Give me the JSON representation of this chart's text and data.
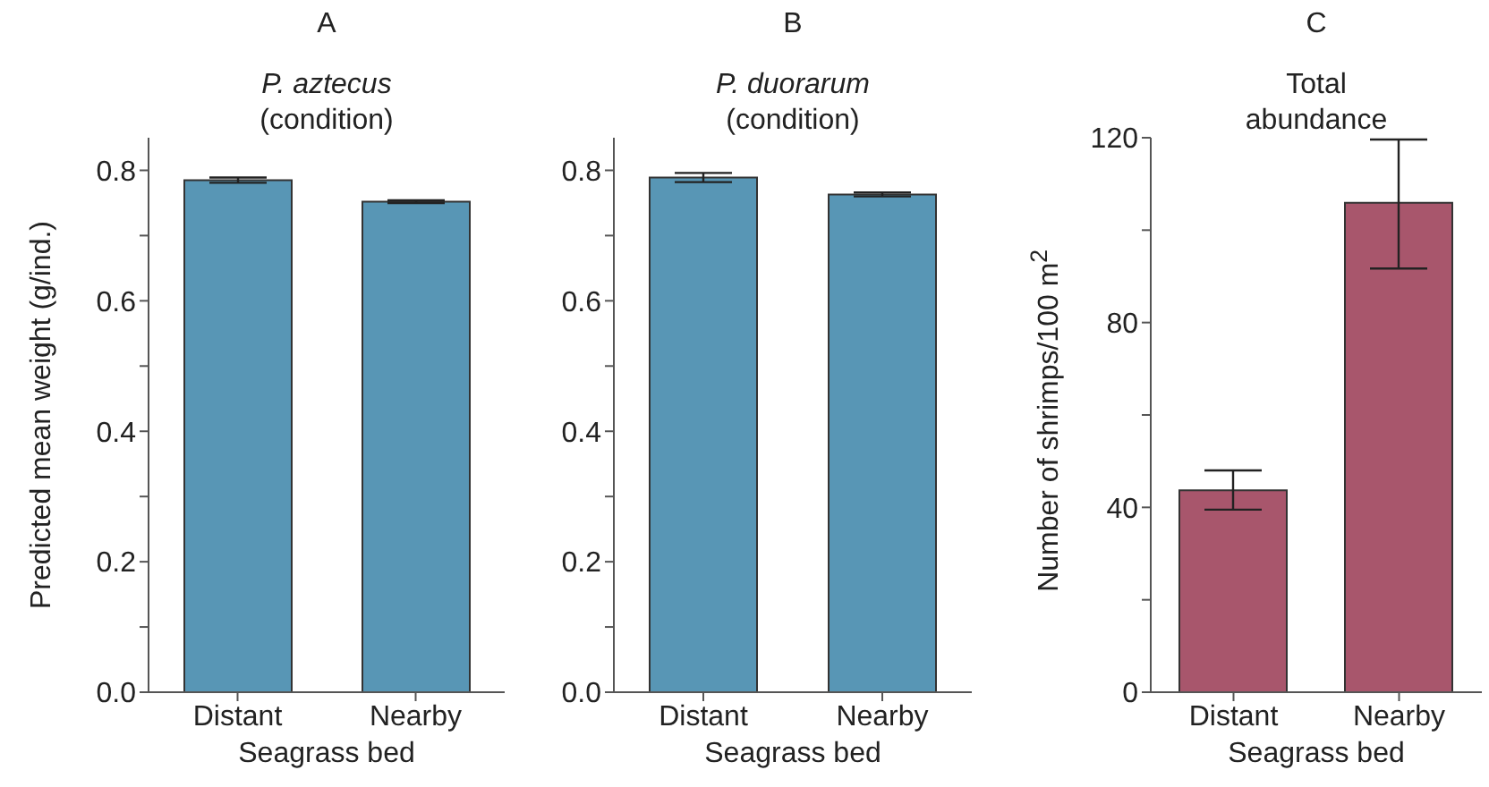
{
  "chart_data": [
    {
      "type": "bar",
      "title": "A",
      "subtitle": "P. aztecus\n(condition)",
      "xlabel": "Seagrass bed",
      "ylabel": "Predicted mean weight (g/ind.)",
      "categories": [
        "Distant",
        "Nearby"
      ],
      "values": [
        0.785,
        0.752
      ],
      "errors": [
        0.004,
        0.002
      ],
      "color": "#5896b5",
      "ylim": [
        0,
        0.85
      ],
      "yticks": [
        {
          "value": 0,
          "label": "0.0"
        },
        {
          "value": 0.1,
          "label": null
        },
        0.2,
        {
          "value": 0.3,
          "label": null
        },
        0.4,
        {
          "value": 0.5,
          "label": null
        },
        0.6,
        {
          "value": 0.7,
          "label": null
        },
        0.8
      ]
    },
    {
      "type": "bar",
      "title": "B",
      "subtitle": "P. duorarum\n(condition)",
      "xlabel": "Seagrass bed",
      "categories": [
        "Distant",
        "Nearby"
      ],
      "values": [
        0.789,
        0.763
      ],
      "errors": [
        0.007,
        0.003
      ],
      "color": "#5896b5",
      "ylim": [
        0,
        0.85
      ],
      "yticks": [
        {
          "value": 0,
          "label": "0.0"
        },
        {
          "value": 0.1,
          "label": null
        },
        0.2,
        {
          "value": 0.3,
          "label": null
        },
        0.4,
        {
          "value": 0.5,
          "label": null
        },
        0.6,
        {
          "value": 0.7,
          "label": null
        },
        0.8
      ]
    },
    {
      "type": "bar",
      "title": "C",
      "annotations": [
        "Total\nabundance"
      ],
      "xlabel": "Seagrass bed",
      "ylabel": "Number of shrimps/100 m$^{2}$",
      "categories": [
        "Distant",
        "Nearby"
      ],
      "values": [
        43.7,
        105.9
      ],
      "errors": [
        [
          39.5,
          48
        ],
        [
          91.7,
          119.6
        ]
      ],
      "color": "#a8566c",
      "ylim": [
        0,
        120
      ],
      "yticks": [
        0,
        {
          "value": 20,
          "label": null
        },
        40,
        {
          "value": 60,
          "label": null
        },
        80,
        {
          "value": 100,
          "label": null
        },
        120
      ]
    }
  ]
}
